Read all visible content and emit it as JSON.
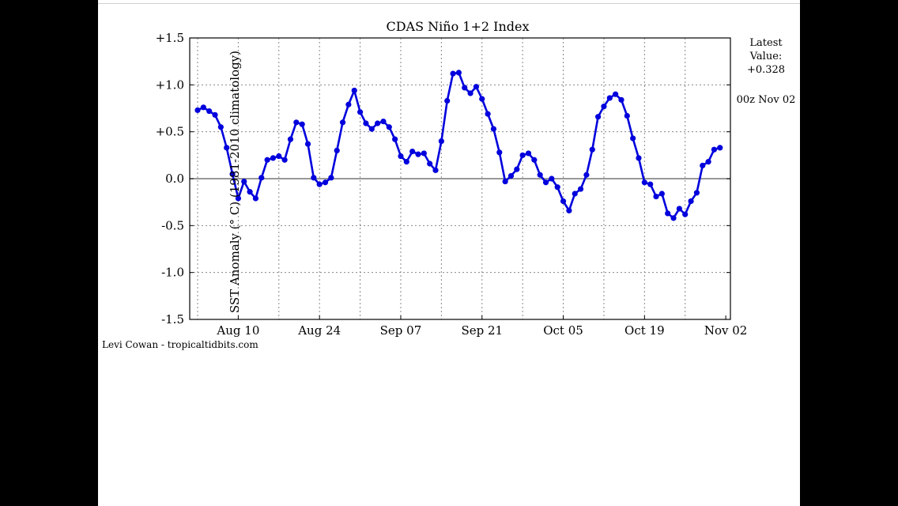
{
  "chart_data": {
    "type": "line",
    "title": "CDAS Niño 1+2 Index",
    "ylabel": "SST Anomaly (° C) (1981-2010 climatology)",
    "xlabel": "",
    "ylim": [
      -1.5,
      1.5
    ],
    "yticks": [
      "+1.5",
      "+1.0",
      "+0.5",
      "0.0",
      "-0.5",
      "-1.0",
      "-1.5"
    ],
    "xtick_labels": [
      "Aug 10",
      "Aug 24",
      "Sep 07",
      "Sep 21",
      "Oct 05",
      "Oct 19",
      "Nov 02"
    ],
    "grid": true,
    "zero_line": true,
    "series_color": "#0000dd",
    "series": [
      {
        "x_start": "Aug 03",
        "x_end": "Nov 02",
        "values": [
          0.73,
          0.76,
          0.72,
          0.68,
          0.55,
          0.33,
          0.05,
          -0.21,
          -0.03,
          -0.14,
          -0.21,
          0.01,
          0.2,
          0.22,
          0.24,
          0.2,
          0.42,
          0.6,
          0.58,
          0.37,
          0.01,
          -0.06,
          -0.04,
          0.01,
          0.3,
          0.6,
          0.79,
          0.94,
          0.71,
          0.59,
          0.53,
          0.59,
          0.61,
          0.55,
          0.42,
          0.24,
          0.18,
          0.29,
          0.26,
          0.27,
          0.16,
          0.09,
          0.4,
          0.83,
          1.12,
          1.13,
          0.97,
          0.91,
          0.98,
          0.85,
          0.69,
          0.53,
          0.28,
          -0.03,
          0.03,
          0.1,
          0.25,
          0.27,
          0.2,
          0.04,
          -0.04,
          0.0,
          -0.09,
          -0.24,
          -0.34,
          -0.16,
          -0.11,
          0.04,
          0.31,
          0.66,
          0.77,
          0.86,
          0.9,
          0.84,
          0.67,
          0.43,
          0.22,
          -0.04,
          -0.06,
          -0.19,
          -0.16,
          -0.37,
          -0.42,
          -0.32,
          -0.38,
          -0.24,
          -0.15,
          0.14,
          0.18,
          0.31,
          0.33
        ]
      }
    ]
  },
  "latest": {
    "label_line1": "Latest",
    "label_line2": "Value:",
    "value": "+0.328",
    "time": "00z Nov 02"
  },
  "credit": "Levi Cowan - tropicaltidbits.com"
}
